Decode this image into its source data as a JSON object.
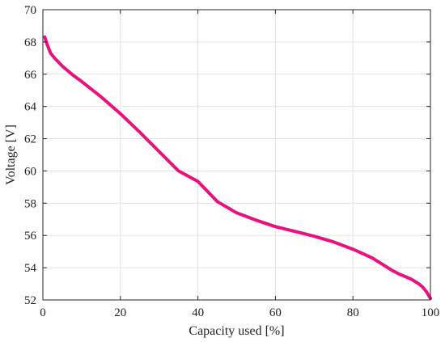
{
  "chart_data": {
    "type": "line",
    "xlabel": "Capacity used [%]",
    "ylabel": "Voltage [V]",
    "xlim": [
      0,
      100
    ],
    "ylim": [
      52,
      70
    ],
    "xticks": [
      0,
      20,
      40,
      60,
      80,
      100
    ],
    "yticks": [
      52,
      54,
      56,
      58,
      60,
      62,
      64,
      66,
      68,
      70
    ],
    "grid": true,
    "series": [
      {
        "color": "#e8127e",
        "x": [
          0.5,
          1,
          2,
          3,
          5,
          8,
          10,
          15,
          20,
          25,
          30,
          35,
          40,
          45,
          50,
          55,
          60,
          65,
          70,
          75,
          80,
          85,
          88,
          90,
          92,
          95,
          97,
          98,
          99,
          99.5,
          100
        ],
        "y": [
          68.3,
          67.9,
          67.3,
          67.0,
          66.5,
          65.9,
          65.55,
          64.6,
          63.55,
          62.4,
          61.2,
          60.0,
          59.35,
          58.1,
          57.4,
          56.95,
          56.55,
          56.25,
          55.95,
          55.6,
          55.15,
          54.6,
          54.15,
          53.85,
          53.6,
          53.3,
          53.0,
          52.8,
          52.5,
          52.3,
          52.1
        ]
      }
    ]
  }
}
